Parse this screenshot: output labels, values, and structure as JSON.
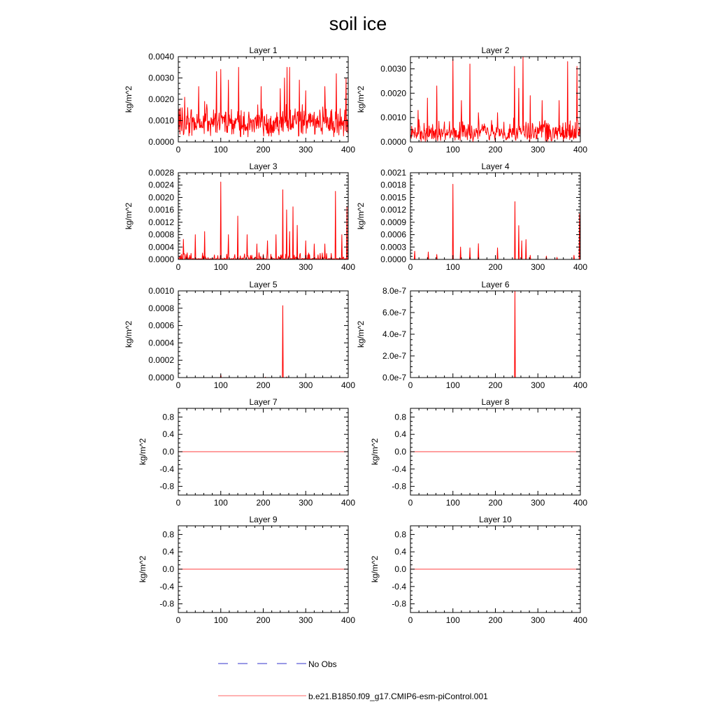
{
  "title": "soil ice",
  "legend": {
    "items": [
      {
        "label": "No Obs",
        "color": "#3333cc",
        "dashed": true
      },
      {
        "label": "b.e21.B1850.f09_g17.CMIP6-esm-piControl.001",
        "color": "#ff6666",
        "dashed": false
      }
    ]
  },
  "series_color": "#ff0000",
  "chart_data": [
    {
      "type": "line",
      "title": "Layer 1",
      "ylabel": "kg/m^2",
      "xlim": [
        0,
        400
      ],
      "xticks": [
        0,
        100,
        200,
        300,
        400
      ],
      "xtick_labels": [
        "0",
        "100",
        "200",
        "300",
        "400"
      ],
      "ylim": [
        0,
        0.004
      ],
      "yticks": [
        0,
        0.001,
        0.002,
        0.003,
        0.004
      ],
      "ytick_labels": [
        "0.0000",
        "0.0010",
        "0.0020",
        "0.0030",
        "0.0040"
      ],
      "pattern": "noisy",
      "base": 0.0009,
      "amp": 0.0008,
      "floor": 0.0002,
      "peaks": [
        [
          15,
          0.0021
        ],
        [
          48,
          0.0026
        ],
        [
          62,
          0.0019
        ],
        [
          90,
          0.0033
        ],
        [
          100,
          0.0034
        ],
        [
          118,
          0.0029
        ],
        [
          142,
          0.0035
        ],
        [
          195,
          0.0026
        ],
        [
          240,
          0.0025
        ],
        [
          250,
          0.003
        ],
        [
          256,
          0.0035
        ],
        [
          262,
          0.0035
        ],
        [
          285,
          0.0029
        ],
        [
          300,
          0.0024
        ],
        [
          345,
          0.0026
        ],
        [
          372,
          0.0032
        ],
        [
          395,
          0.003
        ]
      ]
    },
    {
      "type": "line",
      "title": "Layer 2",
      "ylabel": "kg/m^2",
      "xlim": [
        0,
        400
      ],
      "xticks": [
        0,
        100,
        200,
        300,
        400
      ],
      "xtick_labels": [
        "0",
        "100",
        "200",
        "300",
        "400"
      ],
      "ylim": [
        0,
        0.0035
      ],
      "yticks": [
        0,
        0.001,
        0.002,
        0.003
      ],
      "ytick_labels": [
        "0.0000",
        "0.0010",
        "0.0020",
        "0.0030"
      ],
      "pattern": "noisy",
      "base": 0.0004,
      "amp": 0.0006,
      "floor": 0.0,
      "peaks": [
        [
          18,
          0.0013
        ],
        [
          40,
          0.0018
        ],
        [
          62,
          0.0023
        ],
        [
          100,
          0.0034
        ],
        [
          120,
          0.0017
        ],
        [
          140,
          0.0032
        ],
        [
          160,
          0.0012
        ],
        [
          205,
          0.0012
        ],
        [
          245,
          0.0031
        ],
        [
          255,
          0.0022
        ],
        [
          265,
          0.0035
        ],
        [
          282,
          0.0019
        ],
        [
          310,
          0.0017
        ],
        [
          350,
          0.0017
        ],
        [
          370,
          0.0033
        ],
        [
          392,
          0.0031
        ]
      ]
    },
    {
      "type": "line",
      "title": "Layer 3",
      "ylabel": "kg/m^2",
      "xlim": [
        0,
        400
      ],
      "xticks": [
        0,
        100,
        200,
        300,
        400
      ],
      "xtick_labels": [
        "0",
        "100",
        "200",
        "300",
        "400"
      ],
      "ylim": [
        0,
        0.0028
      ],
      "yticks": [
        0,
        0.0004,
        0.0008,
        0.0012,
        0.0016,
        0.002,
        0.0024,
        0.0028
      ],
      "ytick_labels": [
        "0.0000",
        "0.0004",
        "0.0008",
        "0.0012",
        "0.0016",
        "0.0020",
        "0.0024",
        "0.0028"
      ],
      "pattern": "spiky",
      "base": 3e-05,
      "amp": 0.0001,
      "floor": 0.0,
      "peaks": [
        [
          12,
          0.00065
        ],
        [
          40,
          0.0008
        ],
        [
          62,
          0.0009
        ],
        [
          100,
          0.0025
        ],
        [
          118,
          0.0008
        ],
        [
          140,
          0.0014
        ],
        [
          162,
          0.0008
        ],
        [
          185,
          0.0005
        ],
        [
          210,
          0.0006
        ],
        [
          230,
          0.0008
        ],
        [
          246,
          0.00225
        ],
        [
          255,
          0.0016
        ],
        [
          262,
          0.0009
        ],
        [
          270,
          0.0017
        ],
        [
          280,
          0.0011
        ],
        [
          300,
          0.0006
        ],
        [
          320,
          0.0005
        ],
        [
          345,
          0.0005
        ],
        [
          370,
          0.0022
        ],
        [
          385,
          0.0008
        ],
        [
          397,
          0.0017
        ]
      ]
    },
    {
      "type": "line",
      "title": "Layer 4",
      "ylabel": "kg/m^2",
      "xlim": [
        0,
        400
      ],
      "xticks": [
        0,
        100,
        200,
        300,
        400
      ],
      "xtick_labels": [
        "0",
        "100",
        "200",
        "300",
        "400"
      ],
      "ylim": [
        0,
        0.0021
      ],
      "yticks": [
        0,
        0.0003,
        0.0006,
        0.0009,
        0.0012,
        0.0015,
        0.0018,
        0.0021
      ],
      "ytick_labels": [
        "0.0000",
        "0.0003",
        "0.0006",
        "0.0009",
        "0.0012",
        "0.0015",
        "0.0018",
        "0.0021"
      ],
      "pattern": "sparse",
      "base": 0.0,
      "amp": 0.0,
      "floor": 0.0,
      "peaks": [
        [
          10,
          0.0002
        ],
        [
          42,
          0.00018
        ],
        [
          62,
          0.00012
        ],
        [
          100,
          0.00182
        ],
        [
          118,
          0.0003
        ],
        [
          140,
          0.00028
        ],
        [
          160,
          0.00038
        ],
        [
          205,
          0.00028
        ],
        [
          246,
          0.0014
        ],
        [
          255,
          0.00082
        ],
        [
          262,
          0.00045
        ],
        [
          272,
          0.00048
        ],
        [
          282,
          0.0001
        ],
        [
          320,
          8e-05
        ],
        [
          345,
          5e-05
        ],
        [
          385,
          0.0001
        ],
        [
          398,
          0.0011
        ]
      ]
    },
    {
      "type": "line",
      "title": "Layer 5",
      "ylabel": "kg/m^2",
      "xlim": [
        0,
        400
      ],
      "xticks": [
        0,
        100,
        200,
        300,
        400
      ],
      "xtick_labels": [
        "0",
        "100",
        "200",
        "300",
        "400"
      ],
      "ylim": [
        0,
        0.001
      ],
      "yticks": [
        0,
        0.0002,
        0.0004,
        0.0006,
        0.0008,
        0.001
      ],
      "ytick_labels": [
        "0.0000",
        "0.0002",
        "0.0004",
        "0.0006",
        "0.0008",
        "0.0010"
      ],
      "pattern": "sparse",
      "base": 0.0,
      "amp": 0.0,
      "floor": 0.0,
      "peaks": [
        [
          100,
          3e-05
        ],
        [
          205,
          5e-06
        ],
        [
          246,
          0.00083
        ],
        [
          255,
          8e-06
        ]
      ]
    },
    {
      "type": "line",
      "title": "Layer 6",
      "ylabel": "kg/m^2",
      "xlim": [
        0,
        400
      ],
      "xticks": [
        0,
        100,
        200,
        300,
        400
      ],
      "xtick_labels": [
        "0",
        "100",
        "200",
        "300",
        "400"
      ],
      "ylim": [
        0,
        8e-07
      ],
      "yticks": [
        0,
        2e-07,
        4e-07,
        6e-07,
        8e-07
      ],
      "ytick_labels": [
        "0.0e-7",
        "2.0e-7",
        "4.0e-7",
        "6.0e-7",
        "8.0e-7"
      ],
      "pattern": "sparse",
      "base": 0.0,
      "amp": 0.0,
      "floor": 0.0,
      "peaks": [
        [
          246,
          8e-07
        ]
      ]
    },
    {
      "type": "line",
      "title": "Layer 7",
      "ylabel": "kg/m^2",
      "xlim": [
        0,
        400
      ],
      "xticks": [
        0,
        100,
        200,
        300,
        400
      ],
      "xtick_labels": [
        "0",
        "100",
        "200",
        "300",
        "400"
      ],
      "ylim": [
        -1,
        1
      ],
      "yticks": [
        -0.8,
        -0.4,
        0,
        0.4,
        0.8
      ],
      "ytick_labels": [
        "-0.8",
        "-0.4",
        "0.0",
        "0.4",
        "0.8"
      ],
      "pattern": "zero",
      "base": 0.0,
      "amp": 0.0,
      "floor": 0.0,
      "peaks": []
    },
    {
      "type": "line",
      "title": "Layer 8",
      "ylabel": "kg/m^2",
      "xlim": [
        0,
        400
      ],
      "xticks": [
        0,
        100,
        200,
        300,
        400
      ],
      "xtick_labels": [
        "0",
        "100",
        "200",
        "300",
        "400"
      ],
      "ylim": [
        -1,
        1
      ],
      "yticks": [
        -0.8,
        -0.4,
        0,
        0.4,
        0.8
      ],
      "ytick_labels": [
        "-0.8",
        "-0.4",
        "0.0",
        "0.4",
        "0.8"
      ],
      "pattern": "zero",
      "base": 0.0,
      "amp": 0.0,
      "floor": 0.0,
      "peaks": []
    },
    {
      "type": "line",
      "title": "Layer 9",
      "ylabel": "kg/m^2",
      "xlim": [
        0,
        400
      ],
      "xticks": [
        0,
        100,
        200,
        300,
        400
      ],
      "xtick_labels": [
        "0",
        "100",
        "200",
        "300",
        "400"
      ],
      "ylim": [
        -1,
        1
      ],
      "yticks": [
        -0.8,
        -0.4,
        0,
        0.4,
        0.8
      ],
      "ytick_labels": [
        "-0.8",
        "-0.4",
        "0.0",
        "0.4",
        "0.8"
      ],
      "pattern": "zero",
      "base": 0.0,
      "amp": 0.0,
      "floor": 0.0,
      "peaks": []
    },
    {
      "type": "line",
      "title": "Layer 10",
      "ylabel": "kg/m^2",
      "xlim": [
        0,
        400
      ],
      "xticks": [
        0,
        100,
        200,
        300,
        400
      ],
      "xtick_labels": [
        "0",
        "100",
        "200",
        "300",
        "400"
      ],
      "ylim": [
        -1,
        1
      ],
      "yticks": [
        -0.8,
        -0.4,
        0,
        0.4,
        0.8
      ],
      "ytick_labels": [
        "-0.8",
        "-0.4",
        "0.0",
        "0.4",
        "0.8"
      ],
      "pattern": "zero",
      "base": 0.0,
      "amp": 0.0,
      "floor": 0.0,
      "peaks": []
    }
  ]
}
